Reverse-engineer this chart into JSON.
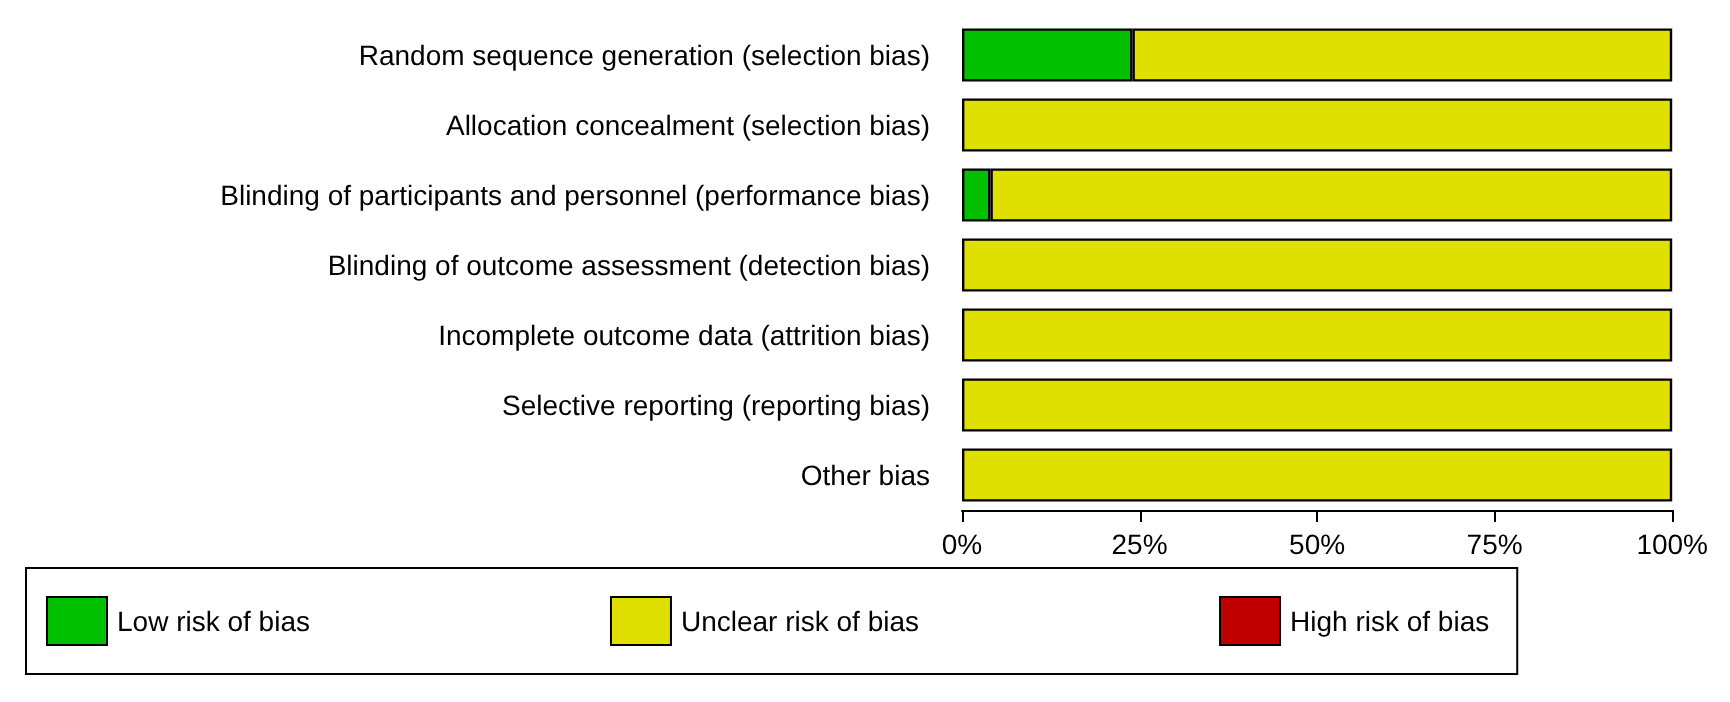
{
  "chart_data": {
    "type": "bar",
    "orientation": "horizontal",
    "stacked": true,
    "categories": [
      "Random sequence generation (selection bias)",
      "Allocation concealment (selection bias)",
      "Blinding of participants and personnel (performance bias)",
      "Blinding of outcome assessment (detection bias)",
      "Incomplete outcome data (attrition bias)",
      "Selective reporting (reporting bias)",
      "Other bias"
    ],
    "series": [
      {
        "name": "Low risk of bias",
        "color": "#00c000",
        "values": [
          24,
          0,
          4,
          0,
          0,
          0,
          0
        ]
      },
      {
        "name": "Unclear risk of bias",
        "color": "#e0e000",
        "values": [
          76,
          100,
          96,
          100,
          100,
          100,
          100
        ]
      },
      {
        "name": "High risk of bias",
        "color": "#c00000",
        "values": [
          0,
          0,
          0,
          0,
          0,
          0,
          0
        ]
      }
    ],
    "xlim": [
      0,
      100
    ],
    "xticks": [
      {
        "value": 0,
        "label": "0%"
      },
      {
        "value": 25,
        "label": "25%"
      },
      {
        "value": 50,
        "label": "50%"
      },
      {
        "value": 75,
        "label": "75%"
      },
      {
        "value": 100,
        "label": "100%"
      }
    ],
    "grid": false,
    "legend": "bottom"
  }
}
